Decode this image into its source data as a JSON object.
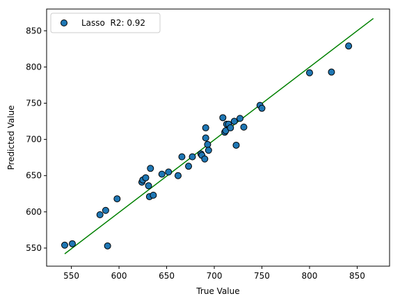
{
  "chart_data": {
    "type": "scatter",
    "xlabel": "True Value",
    "ylabel": "Predicted Value",
    "xlim": [
      524,
      884
    ],
    "ylim": [
      525,
      880
    ],
    "xticks": [
      550,
      600,
      650,
      700,
      750,
      800,
      850
    ],
    "yticks": [
      550,
      600,
      650,
      700,
      750,
      800,
      850
    ],
    "grid": false,
    "legend_position": "top-left",
    "series": [
      {
        "name": "Lasso  R2: 0.92",
        "kind": "scatter",
        "color": "#1f77b4",
        "edgecolor": "#000000",
        "points": [
          [
            543,
            554
          ],
          [
            551,
            556
          ],
          [
            580,
            596
          ],
          [
            586,
            602
          ],
          [
            588,
            553
          ],
          [
            598,
            618
          ],
          [
            624,
            641
          ],
          [
            625,
            644
          ],
          [
            628,
            647
          ],
          [
            631,
            636
          ],
          [
            632,
            621
          ],
          [
            633,
            660
          ],
          [
            636,
            623
          ],
          [
            645,
            652
          ],
          [
            652,
            655
          ],
          [
            662,
            650
          ],
          [
            666,
            676
          ],
          [
            673,
            663
          ],
          [
            677,
            676
          ],
          [
            686,
            680
          ],
          [
            687,
            678
          ],
          [
            690,
            673
          ],
          [
            691,
            702
          ],
          [
            691,
            716
          ],
          [
            693,
            693
          ],
          [
            694,
            685
          ],
          [
            709,
            730
          ],
          [
            711,
            710
          ],
          [
            712,
            712
          ],
          [
            713,
            721
          ],
          [
            715,
            721
          ],
          [
            717,
            716
          ],
          [
            721,
            725
          ],
          [
            723,
            692
          ],
          [
            727,
            729
          ],
          [
            731,
            717
          ],
          [
            748,
            747
          ],
          [
            750,
            743
          ],
          [
            800,
            792
          ],
          [
            823,
            793
          ],
          [
            841,
            829
          ]
        ]
      },
      {
        "name": "",
        "kind": "line",
        "color": "#008000",
        "points": [
          [
            543,
            542
          ],
          [
            867,
            867
          ]
        ]
      }
    ]
  }
}
